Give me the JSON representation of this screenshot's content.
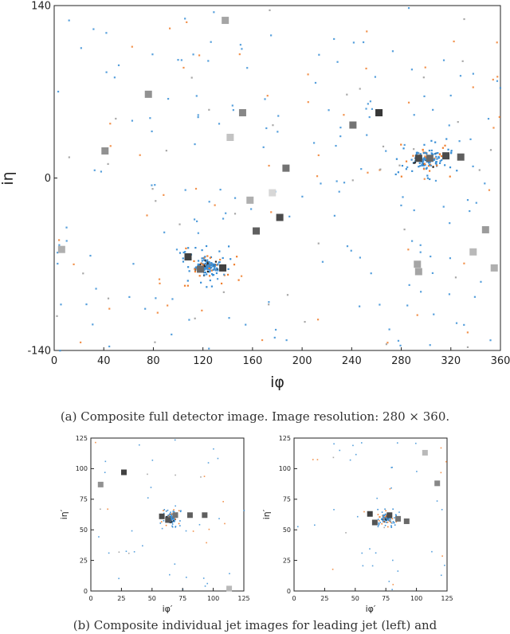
{
  "main": {
    "xlabel": "iφ",
    "ylabel": "iη",
    "x_ticks": [
      "0",
      "40",
      "80",
      "120",
      "160",
      "200",
      "240",
      "280",
      "320",
      "360"
    ],
    "y_ticks": [
      "140",
      "0",
      "-140"
    ]
  },
  "sub_left": {
    "xlabel": "iφ′",
    "ylabel": "iη′",
    "x_ticks": [
      "0",
      "25",
      "50",
      "75",
      "100",
      "125"
    ],
    "y_ticks": [
      "125",
      "100",
      "75",
      "50",
      "25",
      "0"
    ]
  },
  "sub_right": {
    "xlabel": "iφ′",
    "ylabel": "iη′",
    "x_ticks": [
      "0",
      "25",
      "50",
      "75",
      "100",
      "125"
    ],
    "y_ticks": [
      "125",
      "100",
      "75",
      "50",
      "25",
      "0"
    ]
  },
  "captions": {
    "a": "(a) Composite full detector image. Image resolution: 280 × 360.",
    "b": "(b) Composite individual jet images for leading jet (left) and"
  },
  "colors": {
    "track": "#3a8fd6",
    "ecal": "#f08030",
    "hcal_dark": "#333333",
    "hcal_light": "#bbbbbb"
  },
  "chart_data": [
    {
      "type": "heatmap",
      "x_range": [
        0,
        360
      ],
      "y_range": [
        -140,
        140
      ],
      "clusters": [
        {
          "x": 123,
          "y": -71,
          "note": "dense jet cluster"
        },
        {
          "x": 300,
          "y": 16,
          "note": "dense jet cluster"
        }
      ],
      "hcal_cells": [
        {
          "x": 262,
          "y": 53,
          "v": 0.9
        },
        {
          "x": 241,
          "y": 43,
          "v": 0.6
        },
        {
          "x": 142,
          "y": 33,
          "v": 0.2
        },
        {
          "x": 152,
          "y": 53,
          "v": 0.5
        },
        {
          "x": 76,
          "y": 68,
          "v": 0.45
        },
        {
          "x": 41,
          "y": 22,
          "v": 0.45
        },
        {
          "x": 187,
          "y": 8,
          "v": 0.6
        },
        {
          "x": 176,
          "y": -12,
          "v": 0.1
        },
        {
          "x": 158,
          "y": -18,
          "v": 0.3
        },
        {
          "x": 182,
          "y": -32,
          "v": 0.8
        },
        {
          "x": 163,
          "y": -43,
          "v": 0.7
        },
        {
          "x": 6,
          "y": -58,
          "v": 0.3
        },
        {
          "x": 348,
          "y": -42,
          "v": 0.4
        },
        {
          "x": 338,
          "y": -60,
          "v": 0.25
        },
        {
          "x": 293,
          "y": -70,
          "v": 0.35
        },
        {
          "x": 294,
          "y": -76,
          "v": 0.35
        },
        {
          "x": 355,
          "y": -73,
          "v": 0.3
        },
        {
          "x": 138,
          "y": 128,
          "v": 0.35
        },
        {
          "x": 108,
          "y": -64,
          "v": 0.85
        },
        {
          "x": 118,
          "y": -74,
          "v": 0.65
        },
        {
          "x": 136,
          "y": -73,
          "v": 0.85
        },
        {
          "x": 294,
          "y": 16,
          "v": 0.8
        },
        {
          "x": 303,
          "y": 16,
          "v": 0.65
        },
        {
          "x": 316,
          "y": 18,
          "v": 0.8
        },
        {
          "x": 328,
          "y": 17,
          "v": 0.7
        }
      ]
    },
    {
      "type": "heatmap",
      "x_range": [
        0,
        125
      ],
      "y_range": [
        0,
        125
      ],
      "clusters": [
        {
          "x": 65,
          "y": 60
        }
      ],
      "hcal_cells": [
        {
          "x": 27,
          "y": 97,
          "v": 0.85
        },
        {
          "x": 8,
          "y": 87,
          "v": 0.45
        },
        {
          "x": 58,
          "y": 61,
          "v": 0.8
        },
        {
          "x": 63,
          "y": 58,
          "v": 0.75
        },
        {
          "x": 69,
          "y": 62,
          "v": 0.6
        },
        {
          "x": 81,
          "y": 62,
          "v": 0.7
        },
        {
          "x": 93,
          "y": 62,
          "v": 0.7
        },
        {
          "x": 113,
          "y": 2,
          "v": 0.25
        }
      ]
    },
    {
      "type": "heatmap",
      "x_range": [
        0,
        125
      ],
      "y_range": [
        0,
        125
      ],
      "clusters": [
        {
          "x": 75,
          "y": 60
        }
      ],
      "hcal_cells": [
        {
          "x": 107,
          "y": 113,
          "v": 0.25
        },
        {
          "x": 117,
          "y": 88,
          "v": 0.5
        },
        {
          "x": 62,
          "y": 63,
          "v": 0.85
        },
        {
          "x": 66,
          "y": 56,
          "v": 0.75
        },
        {
          "x": 78,
          "y": 62,
          "v": 0.8
        },
        {
          "x": 85,
          "y": 59,
          "v": 0.6
        },
        {
          "x": 92,
          "y": 57,
          "v": 0.65
        }
      ]
    }
  ]
}
